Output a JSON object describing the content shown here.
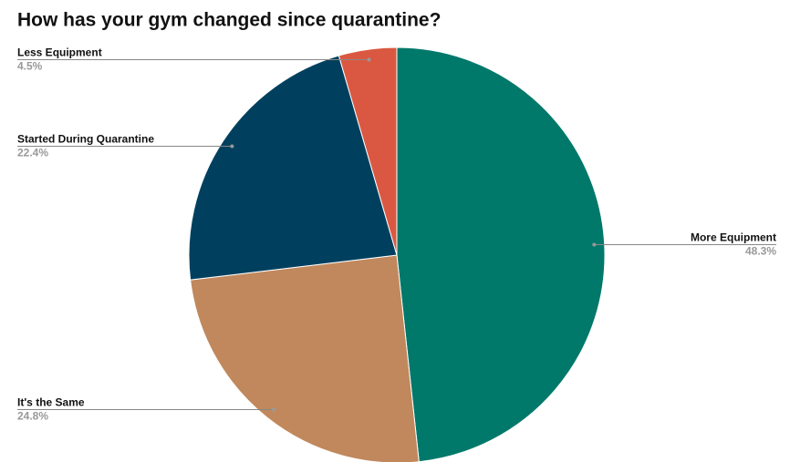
{
  "chart_data": {
    "type": "pie",
    "title": "How has your gym changed since quarantine?",
    "categories": [
      "More Equipment",
      "It's the Same",
      "Started During Quarantine",
      "Less Equipment"
    ],
    "values": [
      48.3,
      24.8,
      22.4,
      4.5
    ],
    "value_labels": [
      "48.3%",
      "24.8%",
      "22.4%",
      "4.5%"
    ],
    "colors": [
      "#00786a",
      "#c0885c",
      "#00405e",
      "#da5841"
    ]
  }
}
